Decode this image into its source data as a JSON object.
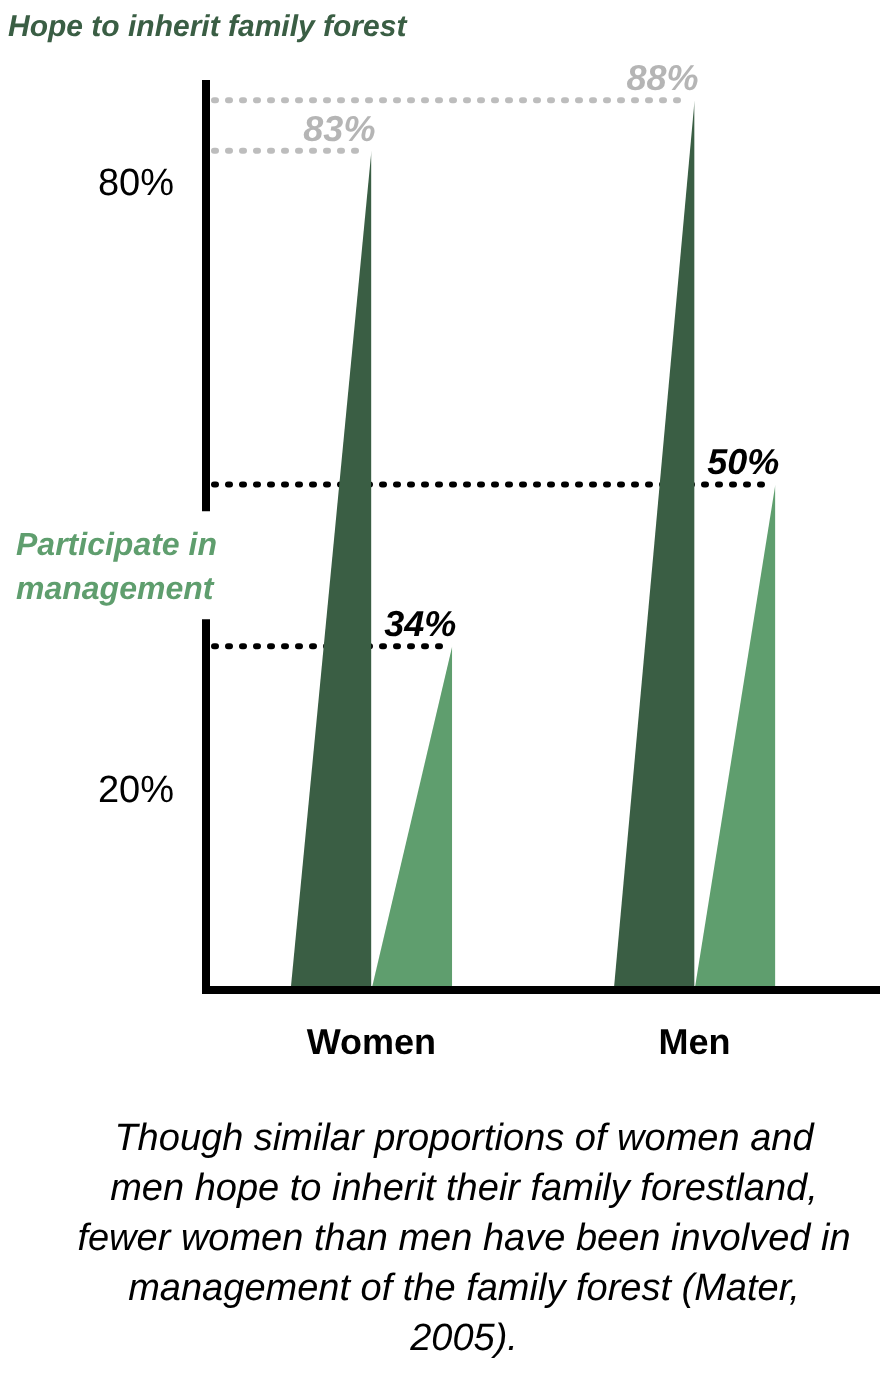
{
  "chart_data": {
    "type": "bar",
    "categories": [
      "Women",
      "Men"
    ],
    "ylim": [
      0,
      90
    ],
    "yticks": [
      {
        "value": 20,
        "label": "20%"
      },
      {
        "value": 80,
        "label": "80%"
      }
    ],
    "grid": false,
    "legend": false,
    "ref_lines": [
      {
        "axis": "y",
        "value": 88,
        "color": "#bdbdbd",
        "line_style": "dotted"
      },
      {
        "axis": "y",
        "value": 83,
        "color": "#bdbdbd",
        "line_style": "dotted"
      },
      {
        "axis": "y",
        "value": 50,
        "color": "#000000",
        "line_style": "dotted"
      },
      {
        "axis": "y",
        "value": 34,
        "color": "#000000",
        "line_style": "dotted"
      }
    ],
    "series": [
      {
        "name": "Hope to inherit family forest",
        "color": "#3a5e44",
        "values": [
          83,
          88
        ],
        "value_labels": [
          "83%",
          "88%"
        ]
      },
      {
        "name": "Participate in management",
        "color": "#5f9e6e",
        "values": [
          34,
          50
        ],
        "value_labels": [
          "34%",
          "50%"
        ]
      }
    ],
    "annotations": [
      "Though similar proportions of women and men hope to inherit their family forestland, fewer women than men have been involved in management of the family forest (Mater, 2005)."
    ]
  }
}
